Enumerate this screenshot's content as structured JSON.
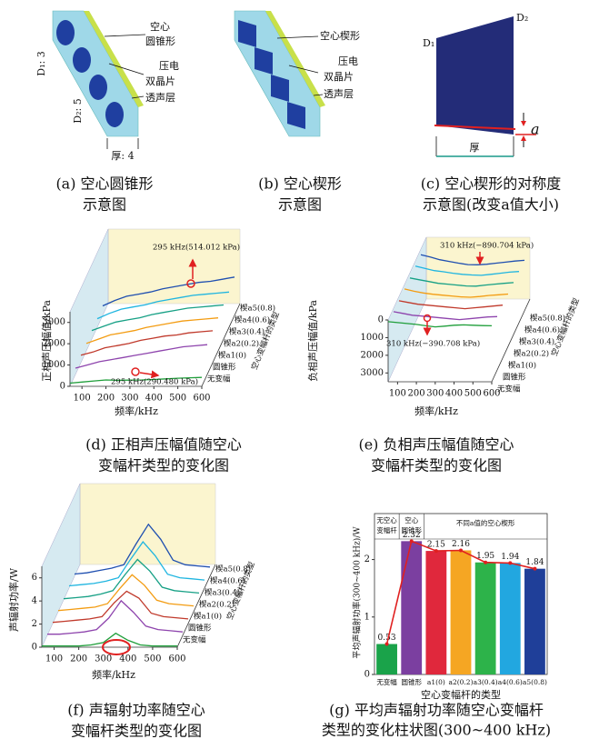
{
  "diagrams": [
    {
      "caption": [
        "(a) 空心圆锥形",
        "示意图"
      ],
      "labels": [
        "空心",
        "圆锥形",
        "压电",
        "双晶片",
        "透声层",
        "D₁: 3",
        "D₂: 5",
        "厚: 4"
      ]
    },
    {
      "caption": [
        "(b) 空心楔形",
        "示意图"
      ],
      "labels": [
        "空心楔形",
        "压电",
        "双晶片",
        "透声层"
      ]
    },
    {
      "caption": [
        "(c) 空心楔形的对称度",
        "示意图(改变a值大小)"
      ],
      "labels": [
        "D₁",
        "D₂",
        "a",
        "厚"
      ]
    }
  ],
  "chart_data": [
    {
      "type": "waterfall",
      "caption": [
        "(d) 正相声压幅值随空心",
        "变幅杆类型的变化图"
      ],
      "ylabel": "正相声压幅值/kPa",
      "xlabel": "频率/kHz",
      "zlabel": "空心变幅杆的类型",
      "x": [
        50,
        100,
        150,
        200,
        250,
        300,
        350,
        400,
        450,
        500,
        550,
        600
      ],
      "xlim": [
        50,
        600
      ],
      "xticks": [
        100,
        200,
        300,
        400,
        500,
        600
      ],
      "ylim": [
        0,
        3500
      ],
      "yticks": [
        0,
        1000,
        2000,
        3000
      ],
      "y_inverted": false,
      "annotations": [
        "295 kHz(514.012 kPa)",
        "295 kHz(290.480 kPa)"
      ],
      "series": [
        {
          "name": "无变幅",
          "color": "#1f9e3a",
          "values": [
            150,
            200,
            250,
            300,
            280,
            290,
            300,
            320,
            350,
            380,
            400,
            420
          ]
        },
        {
          "name": "圆锥形",
          "color": "#8e44ad",
          "values": [
            300,
            450,
            600,
            700,
            800,
            900,
            1000,
            1100,
            1200,
            1300,
            1350,
            1400
          ]
        },
        {
          "name": "楔a1(0)",
          "color": "#c0392b",
          "values": [
            350,
            500,
            700,
            800,
            900,
            1050,
            1150,
            1250,
            1300,
            1400,
            1450,
            1500
          ]
        },
        {
          "name": "楔a2(0.2)",
          "color": "#f39c12",
          "values": [
            350,
            550,
            750,
            850,
            950,
            1100,
            1200,
            1300,
            1400,
            1450,
            1500,
            1550
          ]
        },
        {
          "name": "楔a3(0.4)",
          "color": "#16a085",
          "values": [
            400,
            600,
            800,
            900,
            1000,
            1150,
            1250,
            1350,
            1450,
            1500,
            1550,
            1600
          ]
        },
        {
          "name": "楔a4(0.6)",
          "color": "#1fb5e0",
          "values": [
            400,
            650,
            850,
            950,
            1050,
            1200,
            1300,
            1400,
            1500,
            1550,
            1600,
            1650
          ]
        },
        {
          "name": "楔a5(0.8)",
          "color": "#1f4fb0",
          "values": [
            450,
            700,
            900,
            1000,
            1100,
            1250,
            1350,
            1450,
            1550,
            1600,
            1700,
            1800
          ]
        }
      ]
    },
    {
      "type": "waterfall",
      "caption": [
        "(e) 负相声压幅值随空心",
        "变幅杆类型的变化图"
      ],
      "ylabel": "负相声压幅值/kPa",
      "xlabel": "频率/kHz",
      "zlabel": "空心变幅杆的类型",
      "x": [
        50,
        100,
        150,
        200,
        250,
        300,
        350,
        400,
        450,
        500,
        550,
        600
      ],
      "xlim": [
        50,
        600
      ],
      "xticks": [
        100,
        200,
        300,
        400,
        500,
        600
      ],
      "ylim": [
        0,
        3500
      ],
      "yticks": [
        0,
        1000,
        2000,
        3000
      ],
      "y_inverted": true,
      "annotations": [
        "310 kHz(−890.704 kPa)",
        "310 kHz(−390.708 kPa)"
      ],
      "series": [
        {
          "name": "无变幅",
          "color": "#1f9e3a",
          "values": [
            100,
            150,
            200,
            250,
            330,
            390,
            350,
            300,
            280,
            300,
            320,
            330
          ]
        },
        {
          "name": "圆锥形",
          "color": "#8e44ad",
          "values": [
            200,
            300,
            400,
            450,
            500,
            550,
            600,
            650,
            600,
            550,
            500,
            480
          ]
        },
        {
          "name": "楔a1(0)",
          "color": "#c0392b",
          "values": [
            250,
            350,
            450,
            500,
            550,
            600,
            650,
            700,
            650,
            600,
            550,
            500
          ]
        },
        {
          "name": "楔a2(0.2)",
          "color": "#f39c12",
          "values": [
            250,
            380,
            480,
            550,
            600,
            650,
            700,
            720,
            680,
            620,
            580,
            540
          ]
        },
        {
          "name": "楔a3(0.4)",
          "color": "#16a085",
          "values": [
            300,
            400,
            500,
            600,
            650,
            700,
            750,
            760,
            700,
            650,
            600,
            560
          ]
        },
        {
          "name": "楔a4(0.6)",
          "color": "#1fb5e0",
          "values": [
            300,
            420,
            550,
            620,
            700,
            760,
            800,
            820,
            760,
            700,
            640,
            600
          ]
        },
        {
          "name": "楔a5(0.8)",
          "color": "#1f4fb0",
          "values": [
            320,
            450,
            600,
            700,
            800,
            880,
            890,
            860,
            800,
            740,
            680,
            640
          ]
        }
      ]
    },
    {
      "type": "waterfall",
      "caption": [
        "(f) 声辐射功率随空心",
        "变幅杆类型的变化图"
      ],
      "ylabel": "声辐射功率/W",
      "xlabel": "频率/kHz",
      "zlabel": "空心变幅杆的类型",
      "x": [
        50,
        100,
        150,
        200,
        250,
        300,
        350,
        400,
        450,
        500,
        550,
        600
      ],
      "xlim": [
        50,
        600
      ],
      "xticks": [
        100,
        200,
        300,
        400,
        500,
        600
      ],
      "ylim": [
        0,
        7
      ],
      "yticks": [
        0,
        2,
        4,
        6
      ],
      "y_inverted": false,
      "series": [
        {
          "name": "无变幅",
          "color": "#1f9e3a",
          "values": [
            0.1,
            0.1,
            0.1,
            0.1,
            0.2,
            0.4,
            1.2,
            0.6,
            0.2,
            0.1,
            0.1,
            0.1
          ]
        },
        {
          "name": "圆锥形",
          "color": "#8e44ad",
          "values": [
            0.1,
            0.1,
            0.2,
            0.3,
            0.5,
            1.5,
            3.0,
            2.0,
            0.8,
            0.5,
            0.4,
            0.3
          ]
        },
        {
          "name": "楔a1(0)",
          "color": "#c0392b",
          "values": [
            0.1,
            0.2,
            0.3,
            0.4,
            0.6,
            1.8,
            2.8,
            2.2,
            0.9,
            0.6,
            0.5,
            0.4
          ]
        },
        {
          "name": "楔a2(0.2)",
          "color": "#f39c12",
          "values": [
            0.1,
            0.2,
            0.3,
            0.4,
            0.7,
            2.0,
            3.2,
            2.3,
            1.0,
            0.7,
            0.6,
            0.5
          ]
        },
        {
          "name": "楔a3(0.4)",
          "color": "#16a085",
          "values": [
            0.1,
            0.2,
            0.3,
            0.5,
            0.8,
            2.2,
            3.5,
            2.5,
            1.1,
            0.8,
            0.7,
            0.6
          ]
        },
        {
          "name": "楔a4(0.6)",
          "color": "#1fb5e0",
          "values": [
            0.2,
            0.3,
            0.4,
            0.6,
            0.9,
            2.5,
            4.0,
            2.8,
            1.2,
            0.9,
            0.8,
            0.7
          ]
        },
        {
          "name": "楔a5(0.8)",
          "color": "#1f4fb0",
          "values": [
            0.2,
            0.3,
            0.5,
            0.7,
            1.0,
            2.8,
            4.5,
            3.2,
            1.4,
            1.0,
            0.9,
            0.8
          ]
        }
      ]
    },
    {
      "type": "bar",
      "caption": [
        "(g) 平均声辐射功率随空心变幅杆",
        "类型的变化柱状图(300~400 kHz)"
      ],
      "ylabel": "平均声辐射功率(300~400 kHz)/W",
      "xlabel": "空心变幅杆的类型",
      "groups": [
        [
          "无空心",
          "变幅杆"
        ],
        [
          "空心",
          "圆锥形"
        ],
        [
          "不同a值的空心楔形"
        ]
      ],
      "categories": [
        "无变幅",
        "圆锥形",
        "a1(0)",
        "a2(0.2)",
        "a3(0.4)",
        "a4(0.6)",
        "a5(0.8)"
      ],
      "values": [
        0.53,
        2.32,
        2.15,
        2.16,
        1.95,
        1.94,
        1.84
      ],
      "colors": [
        "#1aa34a",
        "#7b3fa0",
        "#e0283c",
        "#f5a623",
        "#2db34a",
        "#22a7e0",
        "#1f3f99"
      ],
      "line_color": "#e02020",
      "ylim": [
        0,
        2.8
      ],
      "yticks": [
        0,
        1,
        2
      ]
    }
  ]
}
